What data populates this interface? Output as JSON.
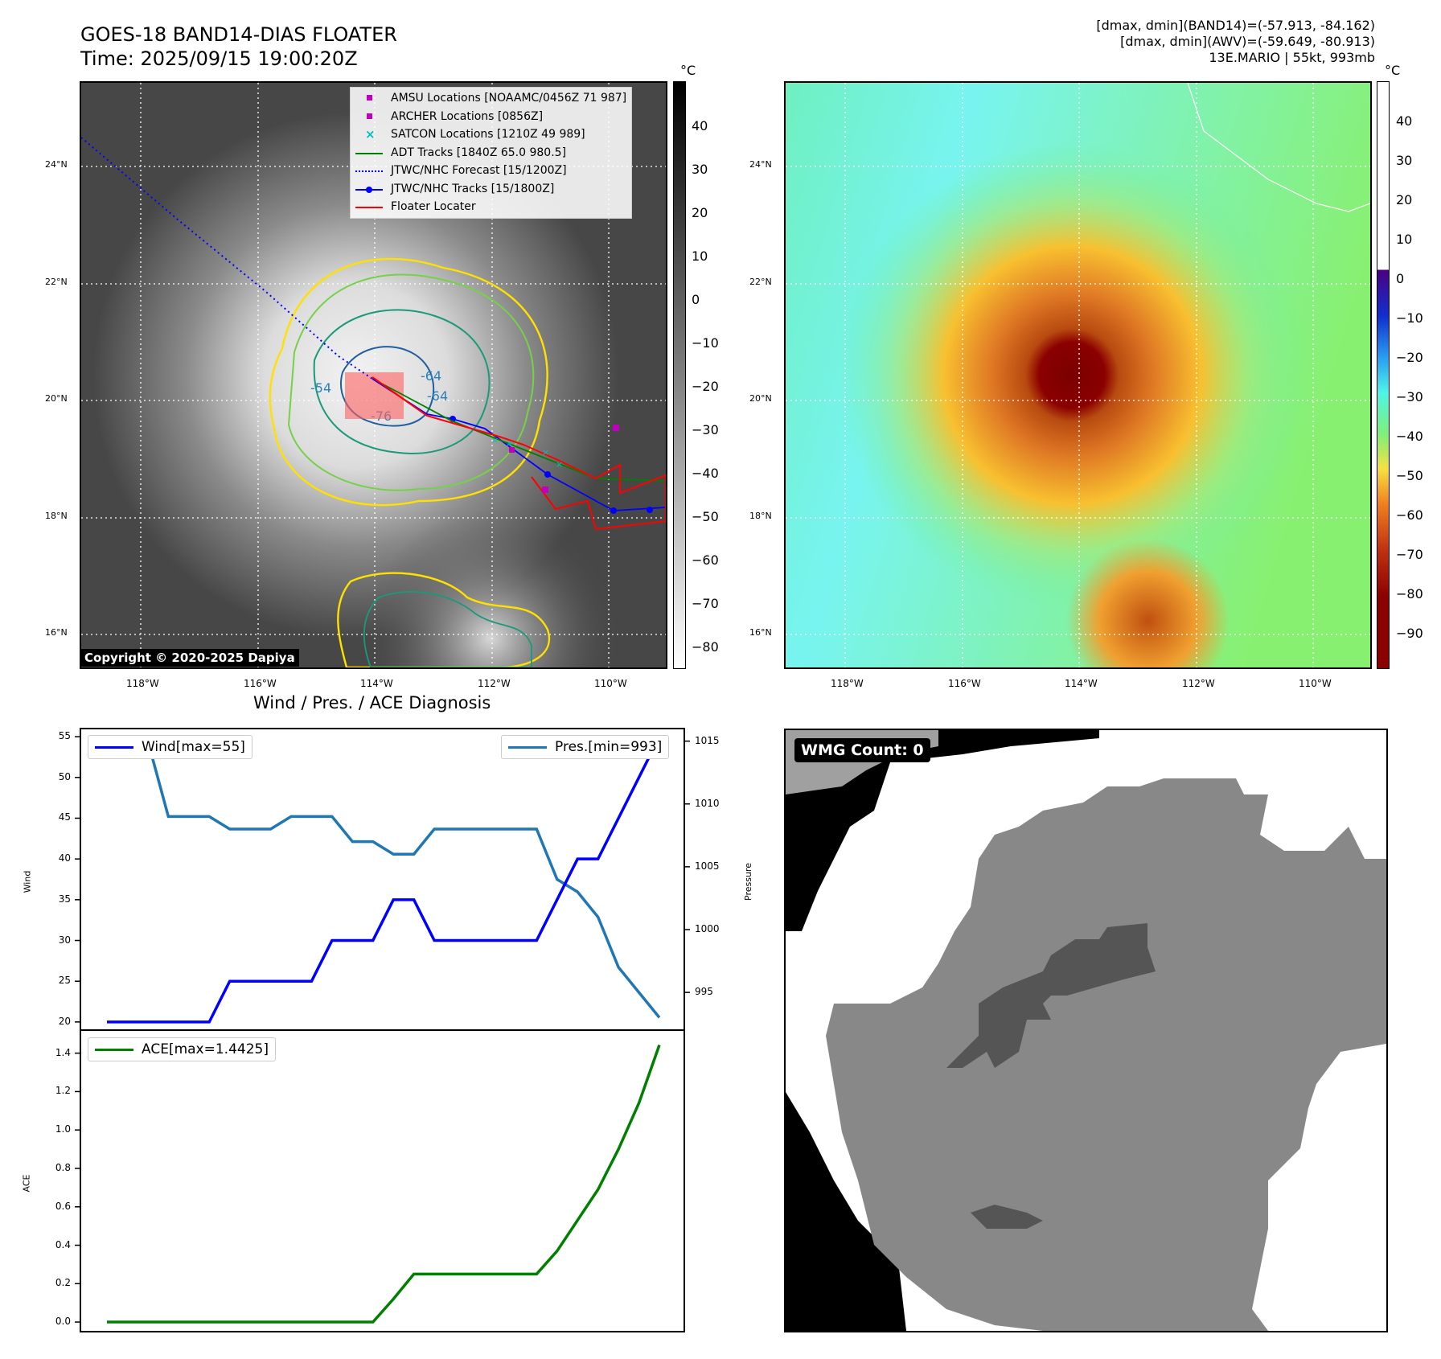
{
  "header": {
    "title_line1": "GOES-18 BAND14-DIAS FLOATER",
    "title_line2": "Time: 2025/09/15 19:00:20Z",
    "stats_line1": "[dmax, dmin](BAND14)=(-57.913, -84.162)",
    "stats_line2": "[dmax, dmin](AWV)=(-59.649, -80.913)",
    "stats_line3": "13E.MARIO | 55kt, 993mb"
  },
  "map": {
    "lat_labels": [
      "24°N",
      "22°N",
      "20°N",
      "18°N",
      "16°N"
    ],
    "lon_labels": [
      "118°W",
      "116°W",
      "114°W",
      "112°W",
      "110°W"
    ],
    "copyright": "Copyright © 2020-2025 Dapiya",
    "contour_labels": [
      "-64",
      "-76",
      "-64",
      "-54"
    ]
  },
  "ir_colorbar": {
    "unit": "°C",
    "ticks": [
      "40",
      "30",
      "20",
      "10",
      "0",
      "−10",
      "−20",
      "−30",
      "−40",
      "−50",
      "−60",
      "−70",
      "−80"
    ]
  },
  "wv_colorbar": {
    "unit": "°C",
    "ticks": [
      "40",
      "30",
      "20",
      "10",
      "0",
      "−10",
      "−20",
      "−30",
      "−40",
      "−50",
      "−60",
      "−70",
      "−80",
      "−90"
    ]
  },
  "legend": {
    "items": [
      {
        "label": "AMSU Locations [NOAAMC/0456Z 71 987]",
        "color": "#bf00bf"
      },
      {
        "label": "ARCHER Locations [0856Z]",
        "color": "#bf00bf"
      },
      {
        "label": "SATCON Locations [1210Z 49 989]",
        "color": "#00bfbf"
      },
      {
        "label": "ADT Tracks [1840Z 65.0 980.5]",
        "color": "#008000"
      },
      {
        "label": "JTWC/NHC Forecast [15/1200Z]",
        "color": "#0000ff"
      },
      {
        "label": "JTWC/NHC Tracks [15/1800Z]",
        "color": "#0000ff"
      },
      {
        "label": "Floater Locater",
        "color": "#ff0000"
      }
    ]
  },
  "diagnosis": {
    "title": "Wind / Pres. / ACE Diagnosis",
    "wind_legend": "Wind[max=55]",
    "pres_legend": "Pres.[min=993]",
    "ace_legend": "ACE[max=1.4425]",
    "wind_axis_label": "Wind",
    "pres_axis_label": "Pressure",
    "ace_axis_label": "ACE",
    "wind_ticks": [
      "55",
      "50",
      "45",
      "40",
      "35",
      "30",
      "25",
      "20"
    ],
    "pres_ticks": [
      "1015",
      "1010",
      "1005",
      "1000",
      "995"
    ],
    "ace_ticks": [
      "1.4",
      "1.2",
      "1.0",
      "0.8",
      "0.6",
      "0.4",
      "0.2",
      "0.0"
    ]
  },
  "wmg": {
    "badge": "WMG Count: 0"
  },
  "chart_data": [
    {
      "type": "line",
      "title": "Wind / Pres. / ACE Diagnosis",
      "ylabel": "Wind",
      "y2label": "Pressure",
      "x": [
        0,
        1,
        2,
        3,
        4,
        5,
        6,
        7,
        8,
        9,
        10,
        11,
        12,
        13,
        14,
        15,
        16,
        17,
        18,
        19,
        20,
        21,
        22,
        23,
        24,
        25,
        26,
        27
      ],
      "series": [
        {
          "name": "Wind[max=55]",
          "axis": "left",
          "color": "#0000ff",
          "values": [
            20,
            20,
            20,
            20,
            20,
            20,
            25,
            25,
            25,
            25,
            25,
            30,
            30,
            30,
            35,
            35,
            30,
            30,
            30,
            30,
            30,
            30,
            35,
            40,
            40,
            45,
            50,
            55
          ]
        },
        {
          "name": "Pres.[min=993]",
          "axis": "right",
          "color": "#1f77b4",
          "values": [
            1015,
            1015,
            1015,
            1009,
            1009,
            1009,
            1008,
            1008,
            1008,
            1009,
            1009,
            1009,
            1007,
            1007,
            1006,
            1006,
            1008,
            1008,
            1008,
            1008,
            1008,
            1008,
            1004,
            1003,
            1001,
            997,
            995,
            993
          ]
        }
      ],
      "ylim": [
        19,
        56
      ],
      "y2lim": [
        992,
        1016
      ]
    },
    {
      "type": "line",
      "ylabel": "ACE",
      "x": [
        0,
        1,
        2,
        3,
        4,
        5,
        6,
        7,
        8,
        9,
        10,
        11,
        12,
        13,
        14,
        15,
        16,
        17,
        18,
        19,
        20,
        21,
        22,
        23,
        24,
        25,
        26,
        27
      ],
      "series": [
        {
          "name": "ACE[max=1.4425]",
          "color": "#008000",
          "values": [
            0,
            0,
            0,
            0,
            0,
            0,
            0,
            0,
            0,
            0,
            0,
            0,
            0,
            0,
            0.12,
            0.25,
            0.25,
            0.25,
            0.25,
            0.25,
            0.25,
            0.25,
            0.37,
            0.53,
            0.69,
            0.9,
            1.14,
            1.4425
          ]
        }
      ],
      "ylim": [
        -0.05,
        1.52
      ]
    }
  ]
}
